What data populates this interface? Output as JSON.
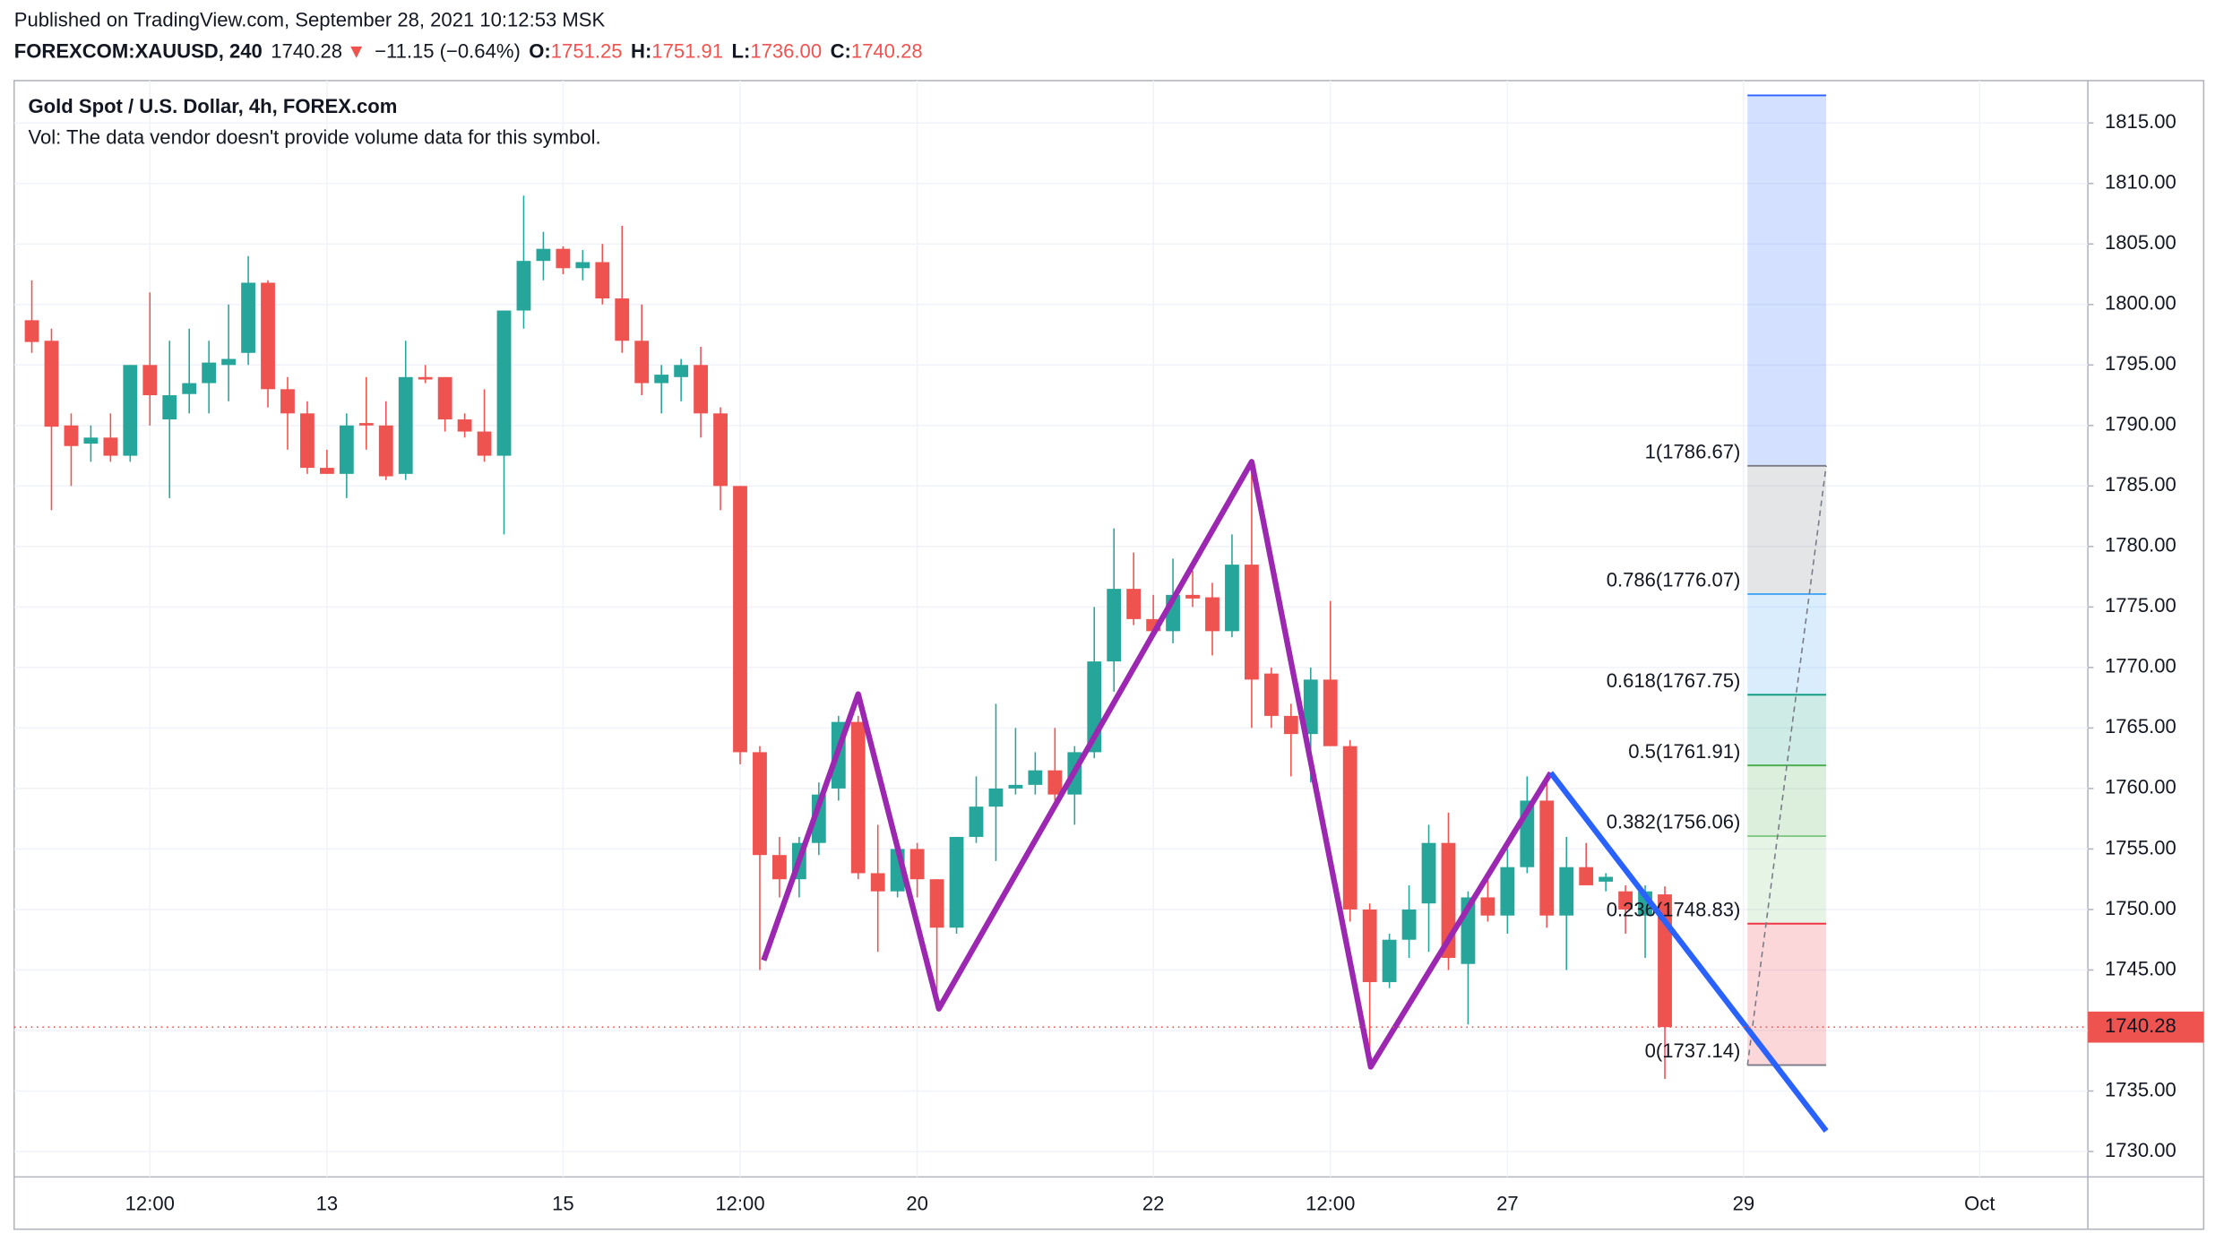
{
  "chart_data": {
    "type": "candlestick",
    "published": "Published on TradingView.com, September 28, 2021 10:12:53 MSK",
    "symbol": "FOREXCOM:XAUUSD, 240",
    "last": "1740.28",
    "arrow": "▼",
    "change": "−11.15 (−0.64%)",
    "ohlc_header": [
      {
        "label": "O:",
        "value": "1751.25"
      },
      {
        "label": "H:",
        "value": "1751.91"
      },
      {
        "label": "L:",
        "value": "1736.00"
      },
      {
        "label": "C:",
        "value": "1740.28"
      }
    ],
    "title": "Gold Spot / U.S. Dollar, 4h, FOREX.com",
    "subtitle": "Vol: The data vendor doesn't provide volume data for this symbol.",
    "up_color": "#26a69a",
    "down_color": "#ef5350",
    "candles": {
      "open": [
        1798.7,
        1797,
        1790,
        1788.5,
        1789,
        1787.5,
        1795,
        1790.5,
        1792.6,
        1793.5,
        1795,
        1796,
        1801.8,
        1793,
        1791,
        1786.5,
        1786,
        1790.2,
        1790,
        1786,
        1794,
        1794,
        1790.5,
        1789.5,
        1787.5,
        1799.5,
        1803.6,
        1804.6,
        1803,
        1803.5,
        1800.5,
        1797,
        1793.5,
        1794,
        1795,
        1791,
        1785,
        1763,
        1754.5,
        1752.5,
        1755.5,
        1760,
        1765.5,
        1753,
        1751.5,
        1755,
        1752.5,
        1748.5,
        1756,
        1758.5,
        1760,
        1760.3,
        1761.5,
        1759.5,
        1763,
        1770.5,
        1776.5,
        1774,
        1773,
        1776,
        1775.8,
        1773,
        1778.5,
        1769.5,
        1766,
        1764.5,
        1769,
        1763.5,
        1750,
        1744,
        1747.5,
        1750.5,
        1755.5,
        1745.5,
        1751,
        1749.5,
        1753.5,
        1759,
        1749.5,
        1753.5,
        1752.3,
        1751.5,
        1749.5,
        1751.25
      ],
      "high": [
        1802,
        1798,
        1791,
        1790,
        1791,
        1795,
        1801,
        1797,
        1798,
        1797,
        1800,
        1804,
        1802,
        1794,
        1792,
        1788,
        1791,
        1794,
        1792,
        1797,
        1795,
        1794,
        1791,
        1793,
        1799,
        1809,
        1806,
        1804.8,
        1804.5,
        1805,
        1806.5,
        1800,
        1795,
        1795.5,
        1796.5,
        1791.5,
        1785,
        1763.5,
        1756,
        1756,
        1760.5,
        1766,
        1766,
        1757,
        1755.5,
        1755.5,
        1752.5,
        1756,
        1761,
        1767,
        1765,
        1763,
        1765,
        1763.5,
        1775,
        1781.5,
        1779.5,
        1776,
        1779,
        1778,
        1777,
        1781,
        1787,
        1770,
        1767,
        1770,
        1775.5,
        1764,
        1750.5,
        1748,
        1752,
        1757,
        1758,
        1751.5,
        1752.5,
        1755,
        1761,
        1761,
        1756,
        1755.5,
        1753,
        1752,
        1752,
        1751.91
      ],
      "low": [
        1796,
        1783,
        1785,
        1787,
        1787,
        1787,
        1790,
        1784,
        1791,
        1791,
        1792,
        1795,
        1791.5,
        1788,
        1786,
        1786,
        1784,
        1788,
        1785.5,
        1785.5,
        1793.5,
        1789.5,
        1789,
        1787,
        1781,
        1798,
        1802,
        1802.5,
        1802,
        1800,
        1796,
        1792.5,
        1791,
        1792,
        1789,
        1783,
        1762,
        1745,
        1751,
        1751,
        1754.5,
        1759,
        1752.5,
        1746.5,
        1751,
        1751,
        1742,
        1748,
        1755.5,
        1754,
        1759.5,
        1759.5,
        1759,
        1757,
        1762.5,
        1768,
        1773.5,
        1772.5,
        1772,
        1775,
        1771,
        1772.5,
        1765,
        1765,
        1761,
        1760.5,
        1763.5,
        1749,
        1737,
        1743.5,
        1746,
        1746.5,
        1745,
        1740.5,
        1749,
        1748,
        1753,
        1748.5,
        1745,
        1752,
        1751.5,
        1748,
        1746,
        1736.0
      ],
      "close": [
        1796.9,
        1789.9,
        1788.3,
        1789,
        1787.5,
        1795,
        1792.5,
        1792.5,
        1793.5,
        1795.2,
        1795.5,
        1801.8,
        1793,
        1791,
        1786.5,
        1786,
        1790,
        1790,
        1785.8,
        1794,
        1793.8,
        1790.5,
        1789.5,
        1787.5,
        1799.5,
        1803.6,
        1804.6,
        1803,
        1803.5,
        1800.5,
        1797,
        1793.5,
        1794.2,
        1795,
        1791,
        1785,
        1763,
        1754.5,
        1752.5,
        1755.5,
        1759.5,
        1765.5,
        1753,
        1751.5,
        1755,
        1752.5,
        1748.5,
        1756,
        1758.5,
        1760,
        1760.3,
        1761.5,
        1759.5,
        1763,
        1770.5,
        1776.5,
        1774,
        1773,
        1776,
        1775.7,
        1773,
        1778.5,
        1769,
        1766,
        1764.5,
        1769,
        1763.5,
        1750,
        1744,
        1747.5,
        1750,
        1755.5,
        1746,
        1751,
        1749.5,
        1753.5,
        1759,
        1749.5,
        1753.5,
        1752,
        1752.7,
        1750,
        1751.5,
        1740.28
      ]
    },
    "ylim": [
      1727.9,
      1818.5
    ],
    "yticks": [
      {
        "value": 1730,
        "label": "1730.00"
      },
      {
        "value": 1735,
        "label": "1735.00"
      },
      {
        "value": 1740,
        "label": "1740.00"
      },
      {
        "value": 1745,
        "label": "1745.00"
      },
      {
        "value": 1750,
        "label": "1750.00"
      },
      {
        "value": 1755,
        "label": "1755.00"
      },
      {
        "value": 1760,
        "label": "1760.00"
      },
      {
        "value": 1765,
        "label": "1765.00"
      },
      {
        "value": 1770,
        "label": "1770.00"
      },
      {
        "value": 1775,
        "label": "1775.00"
      },
      {
        "value": 1780,
        "label": "1780.00"
      },
      {
        "value": 1785,
        "label": "1785.00"
      },
      {
        "value": 1790,
        "label": "1790.00"
      },
      {
        "value": 1795,
        "label": "1795.00"
      },
      {
        "value": 1800,
        "label": "1800.00"
      },
      {
        "value": 1805,
        "label": "1805.00"
      },
      {
        "value": 1810,
        "label": "1810.00"
      },
      {
        "value": 1815,
        "label": "1815.00"
      }
    ],
    "xlim": [
      -0.9,
      104.5
    ],
    "xticks": [
      {
        "value": 6,
        "label": "12:00"
      },
      {
        "value": 15,
        "label": "13"
      },
      {
        "value": 27,
        "label": "15"
      },
      {
        "value": 36,
        "label": "12:00"
      },
      {
        "value": 45,
        "label": "20"
      },
      {
        "value": 57,
        "label": "22"
      },
      {
        "value": 66,
        "label": "12:00"
      },
      {
        "value": 75,
        "label": "27"
      },
      {
        "value": 87,
        "label": "29"
      },
      {
        "value": 99,
        "label": "Oct"
      }
    ],
    "grid": true,
    "price_line": {
      "value": 1740.28,
      "label": "1740.28",
      "color": "#ef5350"
    },
    "zigzag": {
      "color": "#9c27b0",
      "x": [
        37.2,
        42,
        46.1,
        62,
        68.05,
        77.2
      ],
      "y": [
        1745.8,
        1767.8,
        1741.8,
        1787,
        1737,
        1761.3
      ]
    },
    "trend_line": {
      "color": "#2962ff",
      "x": [
        77.2,
        91.2
      ],
      "y": [
        1761.3,
        1731.7
      ]
    },
    "fib": {
      "x": [
        87.2,
        91.2
      ],
      "levels": [
        {
          "price": 1817.28,
          "color": "#2962ff"
        },
        {
          "label": "1(1786.67)",
          "price": 1786.67,
          "color": "#787b86"
        },
        {
          "label": "0.786(1776.07)",
          "price": 1776.07,
          "color": "#42a5f5"
        },
        {
          "label": "0.618(1767.75)",
          "price": 1767.75,
          "color": "#089981"
        },
        {
          "label": "0.5(1761.91)",
          "price": 1761.91,
          "color": "#4caf50"
        },
        {
          "label": "0.382(1756.06)",
          "price": 1756.06,
          "color": "#81c784"
        },
        {
          "label": "0.236(1748.83)",
          "price": 1748.83,
          "color": "#f23645"
        },
        {
          "label": "0(1737.14)",
          "price": 1737.14,
          "color": "#787b86"
        }
      ]
    }
  }
}
